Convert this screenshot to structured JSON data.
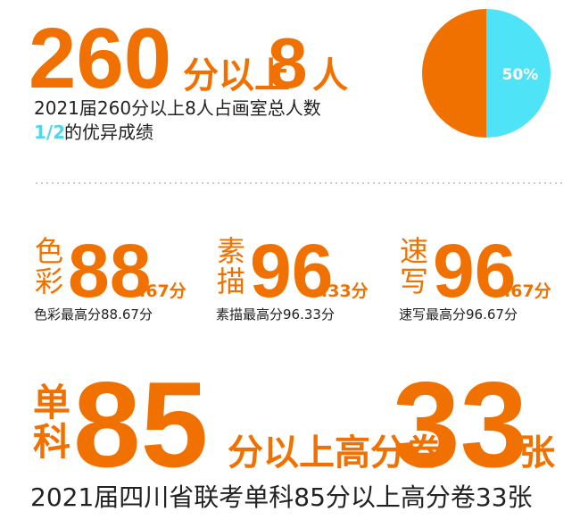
{
  "headline": {
    "num1": "260",
    "text1": "分以上",
    "num2": "8",
    "text2": "人"
  },
  "summary": {
    "line1": "2021届260分以上8人占画室总人数",
    "highlight": "1/2",
    "line2": "的优异成绩"
  },
  "pie": {
    "values": [
      50,
      50
    ],
    "colors": [
      "#4fe3f7",
      "#f07000"
    ],
    "label": "50%"
  },
  "scores": [
    {
      "subject": "色彩",
      "big": "88",
      "small": ".67分",
      "caption": "色彩最高分88.67分"
    },
    {
      "subject": "素描",
      "big": "96",
      "small": ".33分",
      "caption": "素描最高分96.33分"
    },
    {
      "subject": "速写",
      "big": "96",
      "small": ".67分",
      "caption": "速写最高分96.67分"
    }
  ],
  "bottom": {
    "subject": "单科",
    "num1": "85",
    "text1": "分以上高分卷",
    "num2": "33",
    "text2": "张",
    "footer": "2021届四川省联考单科85分以上高分卷33张"
  }
}
